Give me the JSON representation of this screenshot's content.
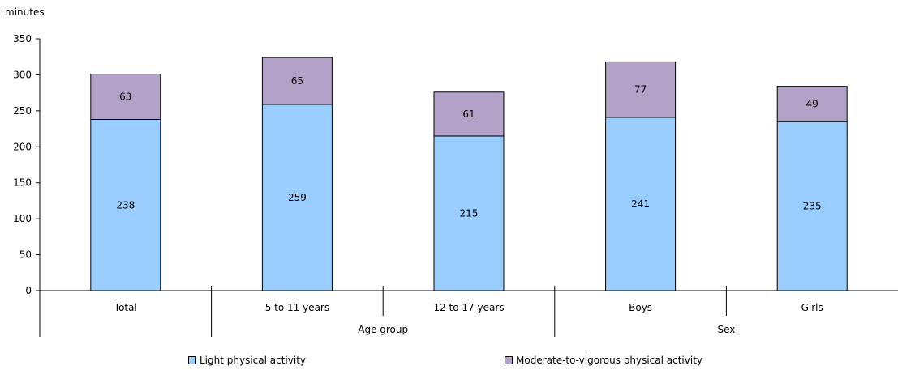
{
  "chart_data": {
    "type": "bar",
    "stacked": true,
    "ylabel": "minutes",
    "ylim": [
      0,
      350
    ],
    "yticks": [
      0,
      50,
      100,
      150,
      200,
      250,
      300,
      350
    ],
    "grid": false,
    "categories": [
      "Total",
      "5 to 11 years",
      "12 to 17 years",
      "Boys",
      "Girls"
    ],
    "groups": [
      {
        "label": "",
        "categories": [
          "Total"
        ]
      },
      {
        "label": "Age group",
        "categories": [
          "5 to 11 years",
          "12 to 17 years"
        ]
      },
      {
        "label": "Sex",
        "categories": [
          "Boys",
          "Girls"
        ]
      }
    ],
    "series": [
      {
        "name": "Light physical activity",
        "values": [
          238,
          259,
          215,
          241,
          235
        ],
        "color": "#99ccff"
      },
      {
        "name": "Moderate-to-vigorous physical activity",
        "values": [
          63,
          65,
          61,
          77,
          49
        ],
        "color": "#b3a2c7"
      }
    ],
    "legend_position": "bottom"
  }
}
